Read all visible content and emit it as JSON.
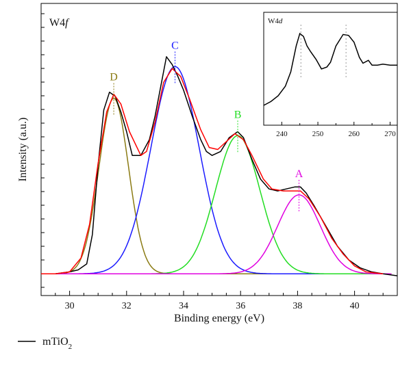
{
  "chart_data": [
    {
      "type": "line",
      "title": "",
      "panel_label": {
        "main": "W4",
        "italic": "f"
      },
      "xlabel": "Binding energy (eV)",
      "ylabel": "Intensity (a.u.)",
      "xlim": [
        29,
        41.5
      ],
      "ylim": [
        -0.11,
        1.37
      ],
      "x_ticks": [
        30,
        32,
        34,
        36,
        38,
        40
      ],
      "grid": false,
      "legend": {
        "placement": "bottom-left",
        "entries": [
          {
            "name": "mTiO",
            "sub": "2",
            "color": "#000000"
          }
        ]
      },
      "peaks": [
        {
          "label": "A",
          "center": 38.05,
          "amplitude": 0.4,
          "sigma": 0.75,
          "color": "#e000e0"
        },
        {
          "label": "B",
          "center": 35.9,
          "amplitude": 0.7,
          "sigma": 0.78,
          "color": "#22dd22"
        },
        {
          "label": "C",
          "center": 33.7,
          "amplitude": 1.05,
          "sigma": 0.85,
          "color": "#1a1aff"
        },
        {
          "label": "D",
          "center": 31.55,
          "amplitude": 0.89,
          "sigma": 0.52,
          "color": "#8a7a12"
        }
      ],
      "series": [
        {
          "name": "mTiO2",
          "color": "#000000",
          "points": [
            [
              29,
              0.0
            ],
            [
              29.5,
              0.0
            ],
            [
              30,
              0.01
            ],
            [
              30.3,
              0.02
            ],
            [
              30.6,
              0.05
            ],
            [
              30.8,
              0.2
            ],
            [
              31.0,
              0.55
            ],
            [
              31.2,
              0.83
            ],
            [
              31.4,
              0.92
            ],
            [
              31.6,
              0.9
            ],
            [
              31.8,
              0.82
            ],
            [
              32.0,
              0.72
            ],
            [
              32.2,
              0.6
            ],
            [
              32.5,
              0.6
            ],
            [
              32.8,
              0.68
            ],
            [
              33.0,
              0.8
            ],
            [
              33.2,
              0.95
            ],
            [
              33.4,
              1.1
            ],
            [
              33.6,
              1.06
            ],
            [
              33.8,
              1.0
            ],
            [
              34.0,
              0.93
            ],
            [
              34.3,
              0.8
            ],
            [
              34.6,
              0.68
            ],
            [
              34.8,
              0.62
            ],
            [
              35.0,
              0.6
            ],
            [
              35.3,
              0.62
            ],
            [
              35.6,
              0.69
            ],
            [
              35.9,
              0.72
            ],
            [
              36.1,
              0.69
            ],
            [
              36.4,
              0.58
            ],
            [
              36.7,
              0.48
            ],
            [
              37.0,
              0.43
            ],
            [
              37.3,
              0.42
            ],
            [
              37.6,
              0.43
            ],
            [
              37.9,
              0.44
            ],
            [
              38.1,
              0.44
            ],
            [
              38.3,
              0.41
            ],
            [
              38.6,
              0.34
            ],
            [
              39.0,
              0.24
            ],
            [
              39.4,
              0.14
            ],
            [
              39.8,
              0.07
            ],
            [
              40.2,
              0.03
            ],
            [
              40.6,
              0.01
            ],
            [
              41.0,
              0.0
            ],
            [
              41.5,
              -0.01
            ]
          ]
        },
        {
          "name": "fit",
          "color": "#ff0000",
          "points": [
            [
              29,
              0.0
            ],
            [
              29.5,
              0.0
            ],
            [
              30,
              0.01
            ],
            [
              30.4,
              0.08
            ],
            [
              30.7,
              0.25
            ],
            [
              31.0,
              0.56
            ],
            [
              31.3,
              0.82
            ],
            [
              31.55,
              0.91
            ],
            [
              31.8,
              0.86
            ],
            [
              32.1,
              0.72
            ],
            [
              32.5,
              0.6
            ],
            [
              32.7,
              0.62
            ],
            [
              33.0,
              0.77
            ],
            [
              33.3,
              0.97
            ],
            [
              33.6,
              1.04
            ],
            [
              33.9,
              1.0
            ],
            [
              34.2,
              0.89
            ],
            [
              34.6,
              0.73
            ],
            [
              34.9,
              0.64
            ],
            [
              35.2,
              0.63
            ],
            [
              35.5,
              0.67
            ],
            [
              35.8,
              0.71
            ],
            [
              36.1,
              0.68
            ],
            [
              36.4,
              0.6
            ],
            [
              36.8,
              0.48
            ],
            [
              37.1,
              0.43
            ],
            [
              37.5,
              0.42
            ],
            [
              37.8,
              0.42
            ],
            [
              38.1,
              0.42
            ],
            [
              38.4,
              0.38
            ],
            [
              38.8,
              0.29
            ],
            [
              39.2,
              0.18
            ],
            [
              39.6,
              0.1
            ],
            [
              40.0,
              0.04
            ],
            [
              40.4,
              0.01
            ],
            [
              41.0,
              0.0
            ]
          ]
        }
      ]
    },
    {
      "type": "line",
      "title": "",
      "panel_label": {
        "main": "W4",
        "italic": "d"
      },
      "xlim": [
        235,
        272
      ],
      "ylim": [
        0,
        1
      ],
      "x_ticks": [
        240,
        250,
        260,
        270
      ],
      "series": [
        {
          "name": "W4d",
          "color": "#000000",
          "points": [
            [
              235,
              0.1
            ],
            [
              237,
              0.14
            ],
            [
              239,
              0.2
            ],
            [
              241,
              0.3
            ],
            [
              242.5,
              0.45
            ],
            [
              244,
              0.72
            ],
            [
              245,
              0.85
            ],
            [
              246,
              0.82
            ],
            [
              247,
              0.72
            ],
            [
              248,
              0.66
            ],
            [
              249.5,
              0.58
            ],
            [
              251,
              0.48
            ],
            [
              252.5,
              0.5
            ],
            [
              253.5,
              0.55
            ],
            [
              255,
              0.72
            ],
            [
              257,
              0.84
            ],
            [
              258.5,
              0.83
            ],
            [
              260,
              0.76
            ],
            [
              261.5,
              0.6
            ],
            [
              262.5,
              0.54
            ],
            [
              264,
              0.57
            ],
            [
              265,
              0.52
            ],
            [
              266.5,
              0.52
            ],
            [
              268,
              0.53
            ],
            [
              270,
              0.52
            ],
            [
              272,
              0.52
            ]
          ]
        }
      ],
      "markers_x": [
        245.3,
        257.8
      ]
    }
  ]
}
